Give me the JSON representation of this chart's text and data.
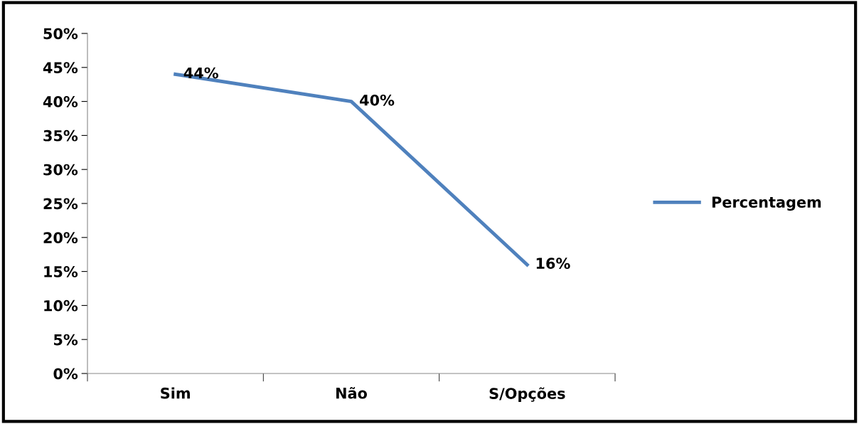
{
  "chart_data": {
    "type": "line",
    "categories": [
      "Sim",
      "Não",
      "S/Opções"
    ],
    "series": [
      {
        "name": "Percentagem",
        "color": "#4f81bd",
        "values": [
          44,
          40,
          16
        ],
        "value_labels": [
          "44%",
          "40%",
          "16%"
        ]
      }
    ],
    "ylim": [
      0,
      50
    ],
    "yticks": [
      {
        "value": 0,
        "label": "0%"
      },
      {
        "value": 5,
        "label": "5%"
      },
      {
        "value": 10,
        "label": "10%"
      },
      {
        "value": 15,
        "label": "15%"
      },
      {
        "value": 20,
        "label": "20%"
      },
      {
        "value": 25,
        "label": "25%"
      },
      {
        "value": 30,
        "label": "30%"
      },
      {
        "value": 35,
        "label": "35%"
      },
      {
        "value": 40,
        "label": "40%"
      },
      {
        "value": 45,
        "label": "45%"
      },
      {
        "value": 50,
        "label": "50%"
      }
    ],
    "grid": false,
    "legend": "right",
    "marker": "none",
    "line_style": "solid"
  }
}
